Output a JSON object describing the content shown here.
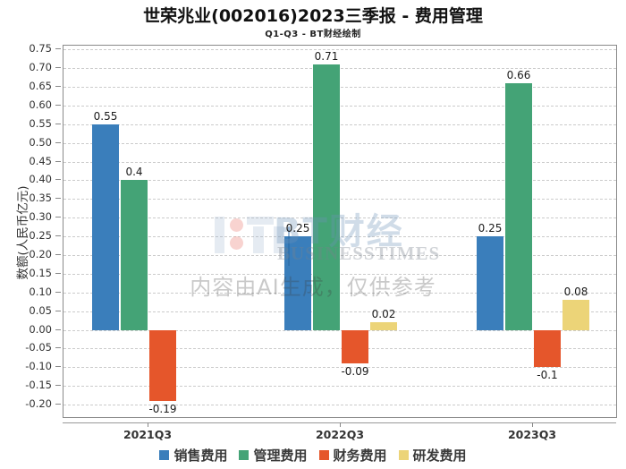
{
  "chart_data": {
    "type": "bar",
    "title": "世荣兆业(002016)2023三季报 - 费用管理",
    "subtitle": "Q1-Q3 - BT财经绘制",
    "ylabel": "数额(人民币亿元)",
    "categories": [
      "2021Q3",
      "2022Q3",
      "2023Q3"
    ],
    "series": [
      {
        "name": "销售费用",
        "color": "#3a7ebb",
        "values": [
          0.55,
          0.25,
          0.25
        ],
        "labels": [
          "0.55",
          "0.25",
          "0.25"
        ]
      },
      {
        "name": "管理费用",
        "color": "#44a376",
        "values": [
          0.4,
          0.71,
          0.66
        ],
        "labels": [
          "0.4",
          "0.71",
          "0.66"
        ]
      },
      {
        "name": "财务费用",
        "color": "#e5562b",
        "values": [
          -0.19,
          -0.09,
          -0.1
        ],
        "labels": [
          "-0.19",
          "-0.09",
          "-0.1"
        ]
      },
      {
        "name": "研发费用",
        "color": "#ecd478",
        "values": [
          null,
          0.02,
          0.08
        ],
        "labels": [
          null,
          "0.02",
          "0.08"
        ]
      }
    ],
    "yticks": [
      "0.75",
      "0.70",
      "0.65",
      "0.60",
      "0.55",
      "0.50",
      "0.45",
      "0.40",
      "0.35",
      "0.30",
      "0.25",
      "0.20",
      "0.15",
      "0.10",
      "0.05",
      "0.00",
      "-0.05",
      "-0.10",
      "-0.15",
      "-0.20"
    ],
    "ylim": [
      -0.233,
      0.76
    ],
    "grid": true,
    "legend_position": "bottom"
  },
  "watermark": {
    "brand": "BT财经",
    "brand_sub": "BUSINESSTIMES",
    "disclaimer": "内容由AI生成，仅供参考"
  }
}
